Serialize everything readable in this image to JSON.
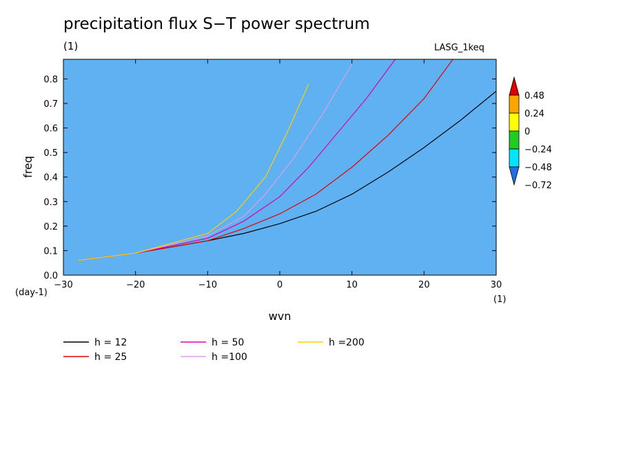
{
  "header": {
    "title": "precipitation flux S−T power spectrum",
    "subtitle_left": "(1)",
    "subtitle_right": "LASG_1keq"
  },
  "chart_data": {
    "type": "heatmap",
    "title": "precipitation flux S−T power spectrum",
    "xlabel": "wvn",
    "ylabel": "freq",
    "x_unit": "(1)",
    "y_unit": "(day-1)",
    "xlim": [
      -30,
      30
    ],
    "ylim": [
      0,
      0.88
    ],
    "x_ticks": [
      -30,
      -20,
      -10,
      0,
      10,
      20,
      30
    ],
    "x_tick_labels": [
      "−30",
      "−20",
      "−10",
      "0",
      "10",
      "20",
      "30"
    ],
    "y_ticks": [
      0.0,
      0.1,
      0.2,
      0.3,
      0.4,
      0.5,
      0.6,
      0.7,
      0.8
    ],
    "y_tick_labels": [
      "0.0",
      "0.1",
      "0.2",
      "0.3",
      "0.4",
      "0.5",
      "0.6",
      "0.7",
      "0.8"
    ],
    "colorbar": {
      "levels": [
        -0.72,
        -0.48,
        -0.24,
        0,
        0.24,
        0.48
      ],
      "labels": [
        "−0.72",
        "−0.48",
        "−0.24",
        "0",
        "0.24",
        "0.48"
      ],
      "colors": [
        "#1f6fe0",
        "#00e5ff",
        "#22cc22",
        "#ffff00",
        "#ffa500",
        "#e00000"
      ],
      "under_color": "#1f6fe0",
      "over_color": "#e00000"
    },
    "dispersion_curves": [
      {
        "name": "h = 12",
        "color": "#000000",
        "x": [
          -28,
          -20,
          -10,
          -5,
          0,
          5,
          10,
          15,
          20,
          25,
          30
        ],
        "y": [
          0.06,
          0.09,
          0.14,
          0.17,
          0.21,
          0.26,
          0.33,
          0.42,
          0.52,
          0.63,
          0.75
        ]
      },
      {
        "name": "h = 25",
        "color": "#e00000",
        "x": [
          -28,
          -20,
          -10,
          -5,
          0,
          5,
          10,
          15,
          20,
          24
        ],
        "y": [
          0.06,
          0.09,
          0.14,
          0.19,
          0.25,
          0.33,
          0.44,
          0.57,
          0.72,
          0.88
        ]
      },
      {
        "name": "h = 50",
        "color": "#dd00aa",
        "x": [
          -28,
          -20,
          -10,
          -5,
          0,
          4,
          8,
          12,
          16
        ],
        "y": [
          0.06,
          0.09,
          0.15,
          0.22,
          0.32,
          0.44,
          0.58,
          0.72,
          0.88
        ]
      },
      {
        "name": "h =100",
        "color": "#d8a0e8",
        "x": [
          -28,
          -20,
          -10,
          -5,
          -2,
          2,
          6,
          10
        ],
        "y": [
          0.06,
          0.09,
          0.16,
          0.24,
          0.33,
          0.48,
          0.66,
          0.86
        ]
      },
      {
        "name": "h =200",
        "color": "#ffd000",
        "x": [
          -28,
          -20,
          -10,
          -6,
          -2,
          1,
          4
        ],
        "y": [
          0.06,
          0.09,
          0.17,
          0.26,
          0.4,
          0.58,
          0.78
        ]
      }
    ],
    "legend": {
      "placement": "bottom",
      "entries": [
        {
          "label": "h = 12",
          "color": "#000000"
        },
        {
          "label": "h = 25",
          "color": "#e00000"
        },
        {
          "label": "h = 50",
          "color": "#dd00aa"
        },
        {
          "label": "h =100",
          "color": "#d8a0e8"
        },
        {
          "label": "h =200",
          "color": "#ffd000"
        }
      ]
    }
  }
}
